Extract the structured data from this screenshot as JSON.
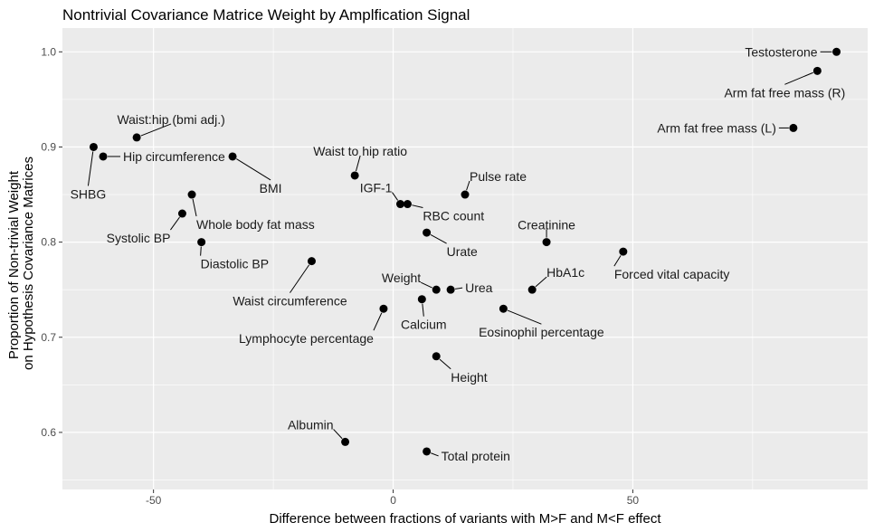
{
  "chart_data": {
    "type": "scatter",
    "title": "Nontrivial Covariance Matrice Weight by Amplfication Signal",
    "xlabel": "Difference between fractions of variants with M>F and M<F effect",
    "ylabel": [
      "Proportion of Non-trivial Weight",
      "on Hypothesis Covariance Matrices"
    ],
    "xlim": [
      -69,
      99
    ],
    "ylim": [
      0.54,
      1.025
    ],
    "x_ticks": [
      -50,
      0,
      50
    ],
    "x_tick_labels": [
      "-50",
      "0",
      "50"
    ],
    "y_ticks": [
      0.6,
      0.7,
      0.8,
      0.9,
      1.0
    ],
    "y_tick_labels": [
      "0.6",
      "0.7",
      "0.8",
      "0.9",
      "1.0"
    ],
    "grid": true,
    "colors": {
      "panel": "#ebebeb",
      "grid": "#ffffff",
      "point": "#000000",
      "label": "#1a1a1a"
    },
    "points": [
      {
        "label": "Testosterone",
        "x": 92.5,
        "y": 1.0,
        "anchor": "end",
        "dx": -21,
        "dy": 0
      },
      {
        "label": "Arm fat free mass (R)",
        "x": 88.5,
        "y": 0.98,
        "anchor": "middle",
        "dx": -36,
        "dy": 24
      },
      {
        "label": "Arm fat free mass (L)",
        "x": 83.5,
        "y": 0.92,
        "anchor": "end",
        "dx": -19,
        "dy": 0
      },
      {
        "label": "Waist:hip (bmi adj.)",
        "x": -53.5,
        "y": 0.91,
        "anchor": "middle",
        "dx": 38,
        "dy": -20
      },
      {
        "label": "SHBG",
        "x": -62.5,
        "y": 0.9,
        "anchor": "middle",
        "dx": -6,
        "dy": 52
      },
      {
        "label": "Hip circumference",
        "x": -60.5,
        "y": 0.89,
        "anchor": "start",
        "dx": 22,
        "dy": 0
      },
      {
        "label": "BMI",
        "x": -33.5,
        "y": 0.89,
        "anchor": "middle",
        "dx": 42,
        "dy": 35
      },
      {
        "label": "Waist to hip ratio",
        "x": -8,
        "y": 0.87,
        "anchor": "middle",
        "dx": 6,
        "dy": -27
      },
      {
        "label": "Pulse rate",
        "x": 15,
        "y": 0.85,
        "anchor": "start",
        "dx": 5,
        "dy": -20
      },
      {
        "label": "Whole body fat mass",
        "x": -42,
        "y": 0.85,
        "anchor": "start",
        "dx": 5,
        "dy": 33
      },
      {
        "label": "IGF-1",
        "x": 1.5,
        "y": 0.84,
        "anchor": "end",
        "dx": -9,
        "dy": -18
      },
      {
        "label": "RBC count",
        "x": 3,
        "y": 0.84,
        "anchor": "start",
        "dx": 17,
        "dy": 13
      },
      {
        "label": "Systolic BP",
        "x": -44,
        "y": 0.83,
        "anchor": "end",
        "dx": -13,
        "dy": 27
      },
      {
        "label": "Urate",
        "x": 7,
        "y": 0.81,
        "anchor": "start",
        "dx": 22,
        "dy": 21
      },
      {
        "label": "Creatinine",
        "x": 32,
        "y": 0.8,
        "anchor": "middle",
        "dx": 0,
        "dy": -19
      },
      {
        "label": "Diastolic BP",
        "x": -40,
        "y": 0.8,
        "anchor": "start",
        "dx": -1,
        "dy": 24
      },
      {
        "label": "Forced vital capacity",
        "x": 48,
        "y": 0.79,
        "anchor": "start",
        "dx": -10,
        "dy": 25
      },
      {
        "label": "Waist circumference",
        "x": -17,
        "y": 0.78,
        "anchor": "middle",
        "dx": -24,
        "dy": 44
      },
      {
        "label": "HbA1c",
        "x": 29,
        "y": 0.75,
        "anchor": "start",
        "dx": 16,
        "dy": -19
      },
      {
        "label": "Weight",
        "x": 9,
        "y": 0.75,
        "anchor": "end",
        "dx": -17,
        "dy": -13
      },
      {
        "label": "Urea",
        "x": 12,
        "y": 0.75,
        "anchor": "start",
        "dx": 16,
        "dy": -2
      },
      {
        "label": "Calcium",
        "x": 6,
        "y": 0.74,
        "anchor": "middle",
        "dx": 2,
        "dy": 28
      },
      {
        "label": "Lymphocyte percentage",
        "x": -2,
        "y": 0.73,
        "anchor": "end",
        "dx": -11,
        "dy": 33
      },
      {
        "label": "Eosinophil percentage",
        "x": 23,
        "y": 0.73,
        "anchor": "middle",
        "dx": 42,
        "dy": 26
      },
      {
        "label": "Height",
        "x": 9,
        "y": 0.68,
        "anchor": "start",
        "dx": 16,
        "dy": 23
      },
      {
        "label": "Albumin",
        "x": -10,
        "y": 0.59,
        "anchor": "end",
        "dx": -13,
        "dy": -19
      },
      {
        "label": "Total protein",
        "x": 7,
        "y": 0.58,
        "anchor": "start",
        "dx": 16,
        "dy": 5
      }
    ]
  }
}
